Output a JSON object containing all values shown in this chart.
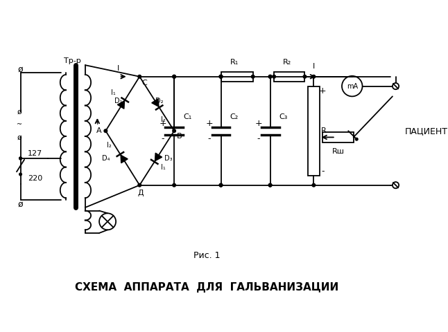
{
  "title": "СХЕМА  АППАРАТА  ДЛЯ  ГАЛЬВАНИЗАЦИИ",
  "subtitle": "Рис. 1",
  "bg_color": "#ffffff",
  "lc": "#000000",
  "labels": {
    "tr": "Тр-р",
    "v127": "127",
    "v220": "220",
    "I1": "I₁",
    "I2": "I₂",
    "D1": "D₁",
    "D2": "D₂",
    "D3": "D₃",
    "D4": "D₄",
    "A_pt": "A",
    "C_pt": "C",
    "B_pt": "B",
    "D_pt": "Д",
    "I_label": "I",
    "R1": "R₁",
    "R2": "R₂",
    "C1": "C₁",
    "C2": "C₂",
    "C3": "C₃",
    "R_label": "R",
    "Rsh": "Rш",
    "mA": "mA",
    "patient": "ПАЦИЕНТ"
  }
}
